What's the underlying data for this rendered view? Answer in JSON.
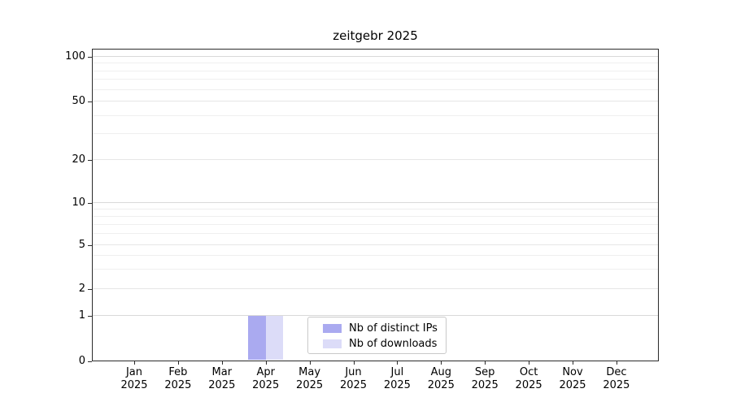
{
  "title": "zeitgebr 2025",
  "year_label": "2025",
  "months": [
    "Jan",
    "Feb",
    "Mar",
    "Apr",
    "May",
    "Jun",
    "Jul",
    "Aug",
    "Sep",
    "Oct",
    "Nov",
    "Dec"
  ],
  "legend": {
    "items": [
      {
        "label": "Nb of distinct IPs",
        "color": "#aaaaf0"
      },
      {
        "label": "Nb of downloads",
        "color": "#dcdcf8"
      }
    ]
  },
  "colors": {
    "background": "#ffffff",
    "spine": "#2b2b2b",
    "grid_decade": "#d9d9d9",
    "grid_labeled_minor": "#e6e6e6",
    "grid_minor": "#efefef",
    "bar_distinct_ips": "#aaaaf0",
    "bar_downloads": "#dcdcf8"
  },
  "chart_data": {
    "type": "bar",
    "title": "zeitgebr 2025",
    "categories": [
      "Jan 2025",
      "Feb 2025",
      "Mar 2025",
      "Apr 2025",
      "May 2025",
      "Jun 2025",
      "Jul 2025",
      "Aug 2025",
      "Sep 2025",
      "Oct 2025",
      "Nov 2025",
      "Dec 2025"
    ],
    "series": [
      {
        "name": "Nb of distinct IPs",
        "color": "#aaaaf0",
        "values": [
          0,
          0,
          0,
          1,
          0,
          0,
          0,
          0,
          0,
          0,
          0,
          0
        ]
      },
      {
        "name": "Nb of downloads",
        "color": "#dcdcf8",
        "values": [
          0,
          0,
          0,
          1,
          0,
          0,
          0,
          0,
          0,
          0,
          0,
          0
        ]
      }
    ],
    "xlabel": "",
    "ylabel": "",
    "yscale": "symlog (log above 1, linear 0-1)",
    "ylim": [
      0,
      115
    ],
    "y_major_ticks": [
      0,
      1,
      2,
      5,
      10,
      20,
      50,
      100
    ],
    "y_decade_ticks": [
      1,
      10,
      100
    ],
    "y_minor_gridlines": [
      3,
      4,
      6,
      7,
      8,
      9,
      30,
      40,
      60,
      70,
      80,
      90
    ],
    "grid": true,
    "legend_position": "lower center, inside axes",
    "bar_group_width_fraction": 0.8
  }
}
